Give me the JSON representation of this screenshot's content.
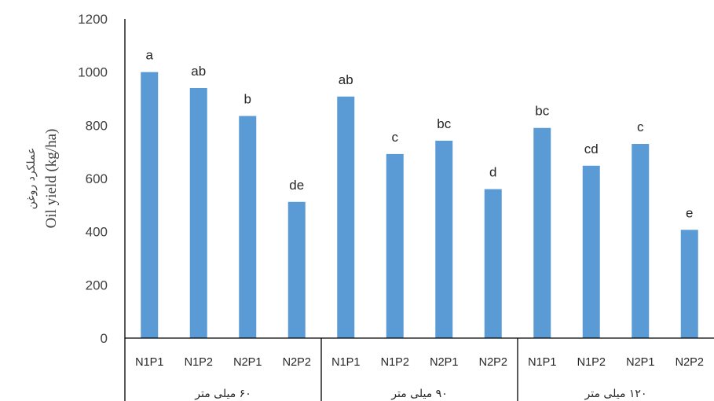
{
  "chart_data": {
    "type": "bar",
    "ylabel_lines": [
      "عملکرد روغن",
      "Oil yield (kg/ha)"
    ],
    "ylim": [
      0,
      1200
    ],
    "yticks": [
      0,
      200,
      400,
      600,
      800,
      1000,
      1200
    ],
    "grid": false,
    "legend": "none",
    "bar_color": "#5B9BD5",
    "groups": [
      {
        "label": "۶۰ میلی متر",
        "bars": [
          {
            "category": "N1P1",
            "value": 1000,
            "letter": "a"
          },
          {
            "category": "N1P2",
            "value": 940,
            "letter": "ab"
          },
          {
            "category": "N2P1",
            "value": 835,
            "letter": "b"
          },
          {
            "category": "N2P2",
            "value": 512,
            "letter": "de"
          }
        ]
      },
      {
        "label": "۹۰ میلی متر",
        "bars": [
          {
            "category": "N1P1",
            "value": 908,
            "letter": "ab"
          },
          {
            "category": "N1P2",
            "value": 692,
            "letter": "c"
          },
          {
            "category": "N2P1",
            "value": 742,
            "letter": "bc"
          },
          {
            "category": "N2P2",
            "value": 560,
            "letter": "d"
          }
        ]
      },
      {
        "label": "۱۲۰ میلی متر",
        "bars": [
          {
            "category": "N1P1",
            "value": 790,
            "letter": "bc"
          },
          {
            "category": "N1P2",
            "value": 648,
            "letter": "cd"
          },
          {
            "category": "N2P1",
            "value": 730,
            "letter": "c"
          },
          {
            "category": "N2P2",
            "value": 407,
            "letter": "e"
          }
        ]
      }
    ]
  }
}
